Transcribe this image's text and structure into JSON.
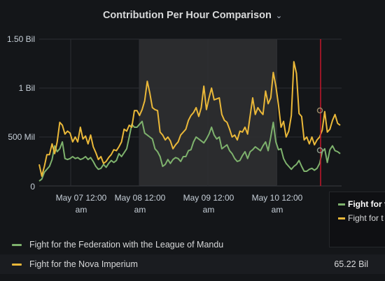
{
  "panel": {
    "title": "Contribution Per Hour Comparison"
  },
  "colors": {
    "series_green": "#7eb26d",
    "series_yellow": "#eab839",
    "background": "#141619",
    "grid": "#2c2e33",
    "time_region": "#2f3033",
    "hover_marker": "#c4162a"
  },
  "chart_data": {
    "type": "line",
    "y_ticks": [
      "1.50 Bil",
      "1 Bil",
      "500 Mil",
      "0"
    ],
    "x_ticks": [
      {
        "line1": "May 07 12:00",
        "line2": "am"
      },
      {
        "line1": "May 08 12:00",
        "line2": "am"
      },
      {
        "line1": "May 09 12:00",
        "line2": "am"
      },
      {
        "line1": "May 10 12:00",
        "line2": "am"
      }
    ],
    "ylim": [
      0,
      1500000000
    ],
    "grid": true,
    "series": [
      {
        "name": "Fight for the Federation with the League of Mandu",
        "color": "#7eb26d",
        "values": [
          0.05,
          0.07,
          0.14,
          0.17,
          0.2,
          0.27,
          0.41,
          0.35,
          0.38,
          0.45,
          0.28,
          0.27,
          0.28,
          0.3,
          0.28,
          0.29,
          0.27,
          0.28,
          0.3,
          0.27,
          0.29,
          0.25,
          0.2,
          0.17,
          0.18,
          0.22,
          0.19,
          0.23,
          0.26,
          0.24,
          0.26,
          0.33,
          0.3,
          0.34,
          0.38,
          0.5,
          0.63,
          0.6,
          0.6,
          0.63,
          0.66,
          0.54,
          0.52,
          0.5,
          0.48,
          0.38,
          0.35,
          0.3,
          0.2,
          0.22,
          0.27,
          0.23,
          0.27,
          0.29,
          0.28,
          0.25,
          0.3,
          0.3,
          0.36,
          0.37,
          0.45,
          0.5,
          0.48,
          0.46,
          0.44,
          0.48,
          0.53,
          0.6,
          0.52,
          0.48,
          0.5,
          0.38,
          0.4,
          0.42,
          0.36,
          0.33,
          0.28,
          0.25,
          0.26,
          0.31,
          0.35,
          0.28,
          0.35,
          0.37,
          0.4,
          0.38,
          0.36,
          0.41,
          0.45,
          0.36,
          0.5,
          0.65,
          0.45,
          0.37,
          0.38,
          0.28,
          0.23,
          0.2,
          0.17,
          0.2,
          0.22,
          0.26,
          0.2,
          0.15,
          0.15,
          0.17,
          0.18,
          0.16,
          0.18,
          0.23,
          0.35,
          0.38,
          0.24,
          0.37,
          0.41,
          0.36,
          0.35,
          0.33
        ]
      },
      {
        "name": "Fight for the Nova Imperium",
        "color": "#eab839",
        "values": [
          0.22,
          0.1,
          0.2,
          0.32,
          0.32,
          0.43,
          0.33,
          0.45,
          0.65,
          0.62,
          0.53,
          0.56,
          0.54,
          0.45,
          0.5,
          0.45,
          0.6,
          0.48,
          0.51,
          0.43,
          0.52,
          0.4,
          0.34,
          0.27,
          0.3,
          0.23,
          0.25,
          0.29,
          0.32,
          0.37,
          0.36,
          0.4,
          0.45,
          0.58,
          0.56,
          0.62,
          0.6,
          0.77,
          0.77,
          0.72,
          0.78,
          0.87,
          1.07,
          0.95,
          0.8,
          0.78,
          0.77,
          0.55,
          0.52,
          0.47,
          0.5,
          0.46,
          0.38,
          0.42,
          0.45,
          0.52,
          0.55,
          0.58,
          0.67,
          0.72,
          0.75,
          0.8,
          0.71,
          0.8,
          1.02,
          0.78,
          0.9,
          1.0,
          0.88,
          0.89,
          0.9,
          0.73,
          0.67,
          0.65,
          0.58,
          0.5,
          0.52,
          0.47,
          0.56,
          0.55,
          0.6,
          0.53,
          0.72,
          0.9,
          0.73,
          0.8,
          0.76,
          0.73,
          0.97,
          0.84,
          0.9,
          1.16,
          1.02,
          0.83,
          0.6,
          0.66,
          0.5,
          0.56,
          0.72,
          1.27,
          1.15,
          0.74,
          0.71,
          0.47,
          0.5,
          0.43,
          0.5,
          0.42,
          0.47,
          0.5,
          0.57,
          0.76,
          0.55,
          0.58,
          0.67,
          0.73,
          0.64,
          0.62
        ]
      }
    ]
  },
  "legend": {
    "items": [
      {
        "label": "Fight for the Federation with the League of Mandu",
        "value": ""
      },
      {
        "label": "Fight for the Nova Imperium",
        "value": "65.22 Bil"
      }
    ]
  },
  "tooltip": {
    "rows": [
      {
        "text": "Fight for t"
      },
      {
        "text": "Fight for t"
      }
    ]
  }
}
